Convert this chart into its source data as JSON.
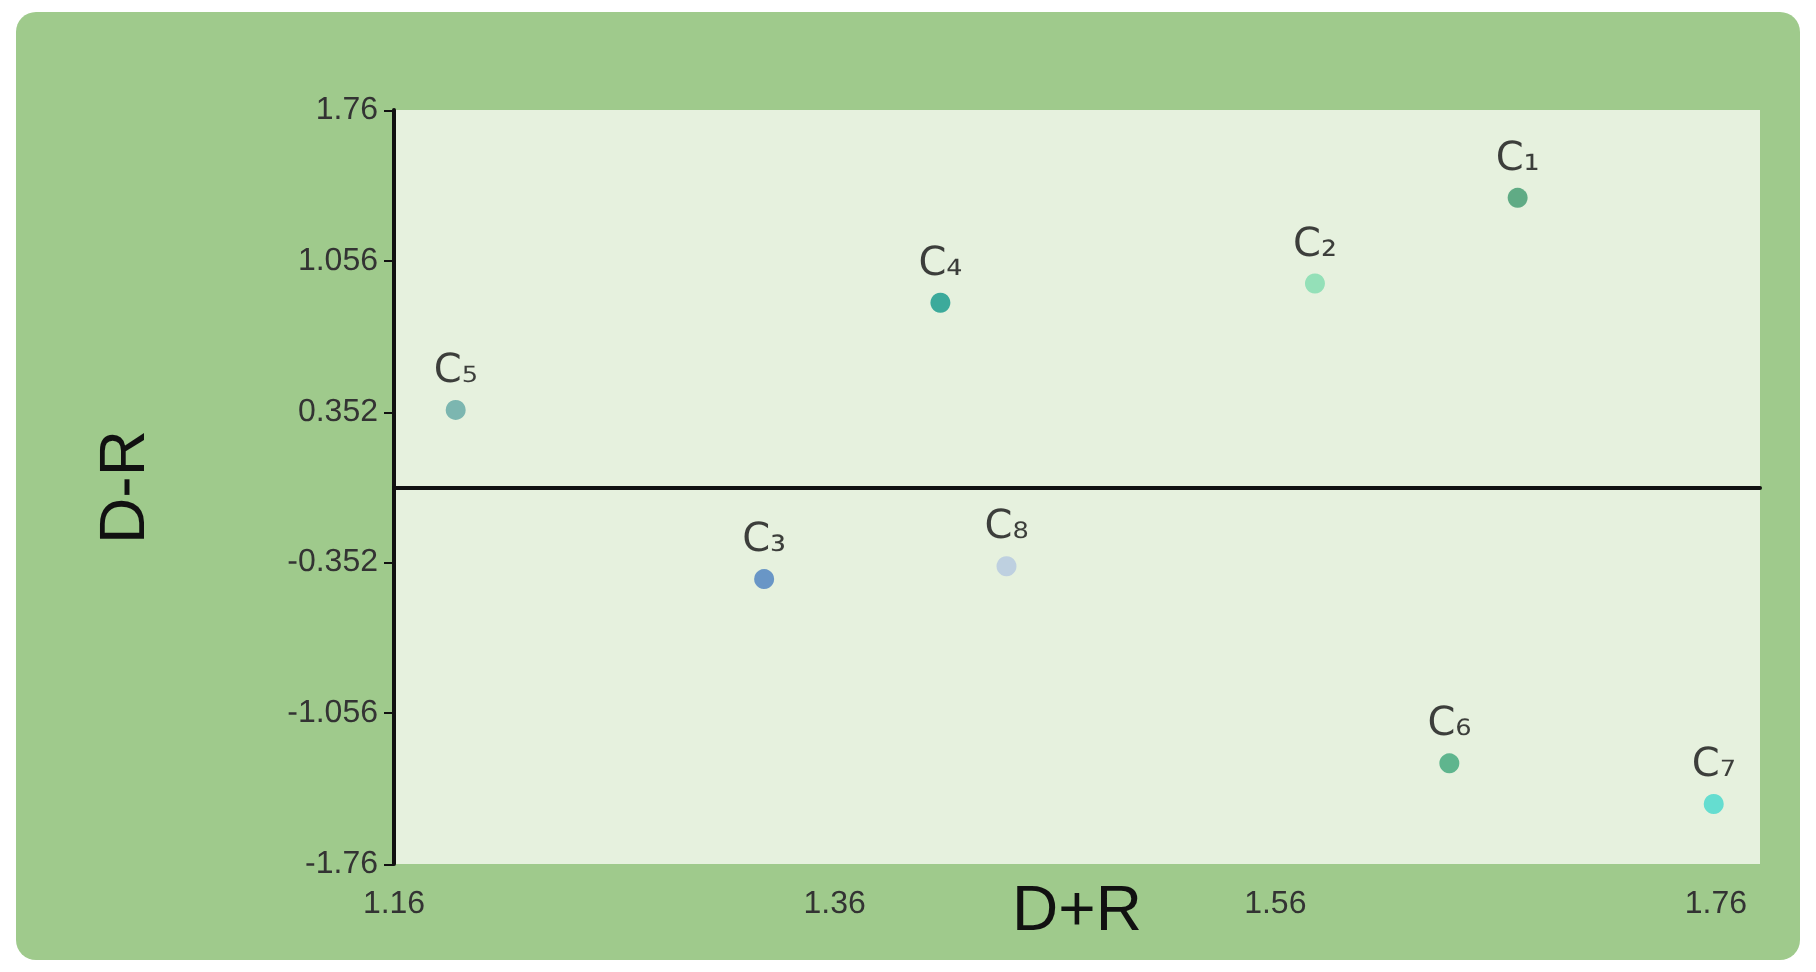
{
  "chart_data": {
    "type": "scatter",
    "xlabel": "D+R",
    "ylabel": "D-R",
    "x": [
      1.67,
      1.578,
      1.328,
      1.408,
      1.188,
      1.639,
      1.759,
      1.438
    ],
    "values": [
      1.35,
      0.95,
      -0.43,
      0.86,
      0.36,
      -1.29,
      -1.48,
      -0.37
    ],
    "colors": [
      "#3f9a6e",
      "#7fdcae",
      "#4a7fbf",
      "#11998a",
      "#62a8a4",
      "#3da679",
      "#45d8cc",
      "#b4c8e0"
    ],
    "value_labels": [
      "C₁",
      "C₂",
      "C₃",
      "C₄",
      "C₅",
      "C₆",
      "C₇",
      "C₈"
    ],
    "marker": "circle",
    "xlim": [
      1.16,
      1.78
    ],
    "xticks": [
      1.16,
      1.36,
      1.56,
      1.76
    ],
    "ylim": [
      -1.76,
      1.76
    ],
    "yticks": [
      -1.76,
      -1.056,
      -0.352,
      0.352,
      1.056,
      1.76
    ],
    "grid": false
  }
}
